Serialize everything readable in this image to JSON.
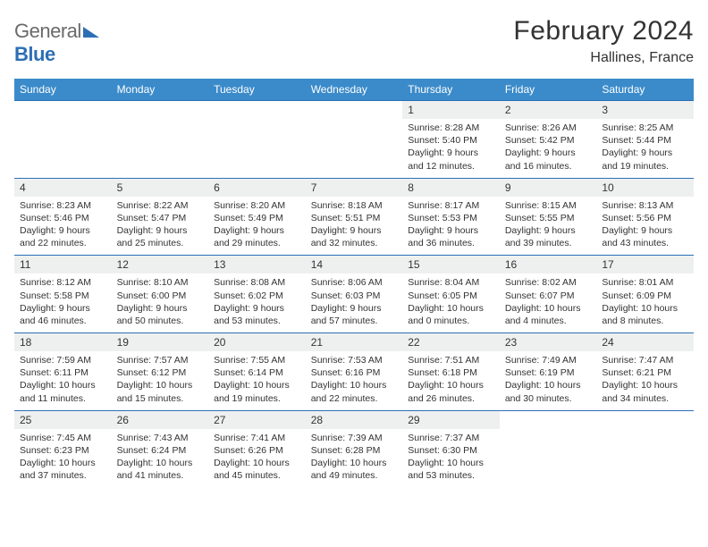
{
  "brand": {
    "name_a": "General",
    "name_b": "Blue"
  },
  "title": "February 2024",
  "location": "Hallines, France",
  "header_bg": "#3b8bca",
  "accent": "#2d6fb5",
  "daynum_bg": "#eef0f0",
  "text_color": "#333333",
  "days_of_week": [
    "Sunday",
    "Monday",
    "Tuesday",
    "Wednesday",
    "Thursday",
    "Friday",
    "Saturday"
  ],
  "weeks": [
    [
      null,
      null,
      null,
      null,
      {
        "n": "1",
        "sr": "8:28 AM",
        "ss": "5:40 PM",
        "dl": "9 hours and 12 minutes."
      },
      {
        "n": "2",
        "sr": "8:26 AM",
        "ss": "5:42 PM",
        "dl": "9 hours and 16 minutes."
      },
      {
        "n": "3",
        "sr": "8:25 AM",
        "ss": "5:44 PM",
        "dl": "9 hours and 19 minutes."
      }
    ],
    [
      {
        "n": "4",
        "sr": "8:23 AM",
        "ss": "5:46 PM",
        "dl": "9 hours and 22 minutes."
      },
      {
        "n": "5",
        "sr": "8:22 AM",
        "ss": "5:47 PM",
        "dl": "9 hours and 25 minutes."
      },
      {
        "n": "6",
        "sr": "8:20 AM",
        "ss": "5:49 PM",
        "dl": "9 hours and 29 minutes."
      },
      {
        "n": "7",
        "sr": "8:18 AM",
        "ss": "5:51 PM",
        "dl": "9 hours and 32 minutes."
      },
      {
        "n": "8",
        "sr": "8:17 AM",
        "ss": "5:53 PM",
        "dl": "9 hours and 36 minutes."
      },
      {
        "n": "9",
        "sr": "8:15 AM",
        "ss": "5:55 PM",
        "dl": "9 hours and 39 minutes."
      },
      {
        "n": "10",
        "sr": "8:13 AM",
        "ss": "5:56 PM",
        "dl": "9 hours and 43 minutes."
      }
    ],
    [
      {
        "n": "11",
        "sr": "8:12 AM",
        "ss": "5:58 PM",
        "dl": "9 hours and 46 minutes."
      },
      {
        "n": "12",
        "sr": "8:10 AM",
        "ss": "6:00 PM",
        "dl": "9 hours and 50 minutes."
      },
      {
        "n": "13",
        "sr": "8:08 AM",
        "ss": "6:02 PM",
        "dl": "9 hours and 53 minutes."
      },
      {
        "n": "14",
        "sr": "8:06 AM",
        "ss": "6:03 PM",
        "dl": "9 hours and 57 minutes."
      },
      {
        "n": "15",
        "sr": "8:04 AM",
        "ss": "6:05 PM",
        "dl": "10 hours and 0 minutes."
      },
      {
        "n": "16",
        "sr": "8:02 AM",
        "ss": "6:07 PM",
        "dl": "10 hours and 4 minutes."
      },
      {
        "n": "17",
        "sr": "8:01 AM",
        "ss": "6:09 PM",
        "dl": "10 hours and 8 minutes."
      }
    ],
    [
      {
        "n": "18",
        "sr": "7:59 AM",
        "ss": "6:11 PM",
        "dl": "10 hours and 11 minutes."
      },
      {
        "n": "19",
        "sr": "7:57 AM",
        "ss": "6:12 PM",
        "dl": "10 hours and 15 minutes."
      },
      {
        "n": "20",
        "sr": "7:55 AM",
        "ss": "6:14 PM",
        "dl": "10 hours and 19 minutes."
      },
      {
        "n": "21",
        "sr": "7:53 AM",
        "ss": "6:16 PM",
        "dl": "10 hours and 22 minutes."
      },
      {
        "n": "22",
        "sr": "7:51 AM",
        "ss": "6:18 PM",
        "dl": "10 hours and 26 minutes."
      },
      {
        "n": "23",
        "sr": "7:49 AM",
        "ss": "6:19 PM",
        "dl": "10 hours and 30 minutes."
      },
      {
        "n": "24",
        "sr": "7:47 AM",
        "ss": "6:21 PM",
        "dl": "10 hours and 34 minutes."
      }
    ],
    [
      {
        "n": "25",
        "sr": "7:45 AM",
        "ss": "6:23 PM",
        "dl": "10 hours and 37 minutes."
      },
      {
        "n": "26",
        "sr": "7:43 AM",
        "ss": "6:24 PM",
        "dl": "10 hours and 41 minutes."
      },
      {
        "n": "27",
        "sr": "7:41 AM",
        "ss": "6:26 PM",
        "dl": "10 hours and 45 minutes."
      },
      {
        "n": "28",
        "sr": "7:39 AM",
        "ss": "6:28 PM",
        "dl": "10 hours and 49 minutes."
      },
      {
        "n": "29",
        "sr": "7:37 AM",
        "ss": "6:30 PM",
        "dl": "10 hours and 53 minutes."
      },
      null,
      null
    ]
  ],
  "labels": {
    "sunrise": "Sunrise:",
    "sunset": "Sunset:",
    "daylight": "Daylight:"
  }
}
